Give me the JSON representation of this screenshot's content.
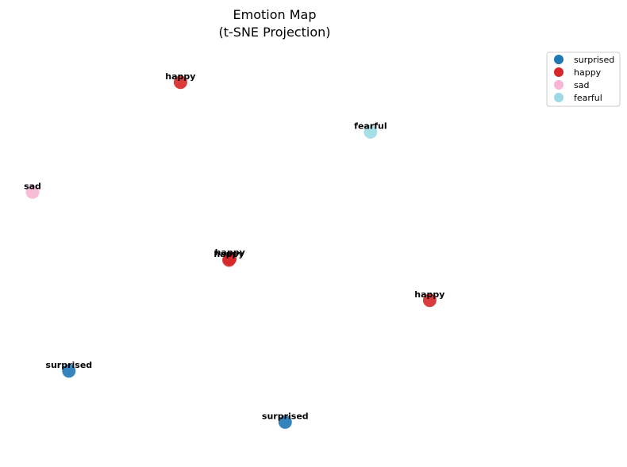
{
  "chart_data": {
    "type": "scatter",
    "title_lines": [
      "Emotion Map",
      "(t-SNE Projection)"
    ],
    "xlabel": "",
    "ylabel": "",
    "axes_visible": false,
    "grid": false,
    "legend_placement": "top-right",
    "xlim": [
      0,
      100
    ],
    "ylim": [
      0,
      100
    ],
    "categories": [
      {
        "name": "surprised",
        "color": "#1f77b4"
      },
      {
        "name": "happy",
        "color": "#d62728"
      },
      {
        "name": "sad",
        "color": "#f7b6d2"
      },
      {
        "name": "fearful",
        "color": "#9edae5"
      }
    ],
    "points": [
      {
        "label": "happy",
        "category": "happy",
        "x": 30.5,
        "y": 95.8
      },
      {
        "label": "fearful",
        "category": "fearful",
        "x": 69.7,
        "y": 82.5
      },
      {
        "label": "sad",
        "category": "sad",
        "x": 0.0,
        "y": 66.4
      },
      {
        "label": "happy",
        "category": "happy",
        "x": 40.5,
        "y": 48.2
      },
      {
        "label": "happy",
        "category": "happy",
        "x": 40.7,
        "y": 48.6
      },
      {
        "label": "happy",
        "category": "happy",
        "x": 81.9,
        "y": 37.4
      },
      {
        "label": "surprised",
        "category": "surprised",
        "x": 7.5,
        "y": 18.5
      },
      {
        "label": "surprised",
        "category": "surprised",
        "x": 52.1,
        "y": 4.8
      }
    ]
  }
}
